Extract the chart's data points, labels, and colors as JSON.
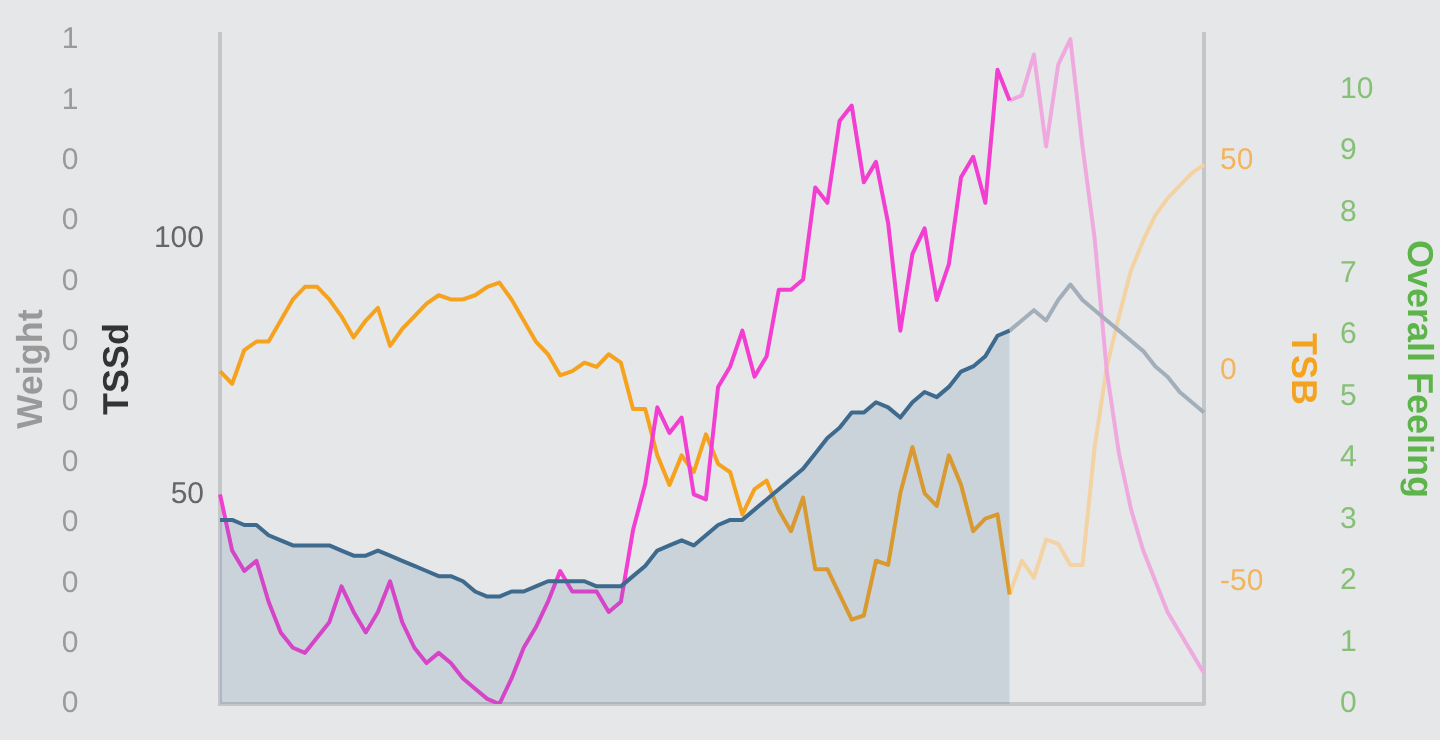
{
  "chart_data": {
    "type": "line",
    "ylabel": "TSSd",
    "y2label": "TSB",
    "y3label": "Overall Feeling",
    "annotations": [
      "Weight",
      "1",
      "1",
      "0",
      "0",
      "0",
      "0",
      "0",
      "0",
      "0",
      "0",
      "0",
      "0"
    ],
    "tick_labels": "y",
    "categories": [
      null,
      null,
      null,
      null,
      null,
      null,
      null,
      null,
      null,
      null,
      null,
      null,
      null,
      null,
      null,
      null,
      null,
      null,
      null,
      null,
      null,
      null,
      null,
      null,
      null,
      null,
      null,
      null,
      null,
      null,
      null,
      null,
      null,
      null,
      null,
      null,
      null,
      null,
      null,
      null,
      null,
      null,
      null,
      null,
      null,
      null,
      null,
      null,
      null,
      null,
      null,
      null,
      null,
      null,
      null,
      null,
      null,
      null,
      null,
      null,
      null,
      null,
      null,
      null,
      null,
      null,
      null,
      null,
      null,
      null,
      null,
      null,
      null,
      null,
      null,
      null,
      null,
      null,
      null,
      null,
      null,
      null
    ],
    "ylim": [
      9,
      140
    ],
    "yticks": [
      50,
      100
    ],
    "y2lim": [
      -79,
      80
    ],
    "y2ticks": [
      -50,
      0,
      50
    ],
    "y3lim": [
      0,
      10.9
    ],
    "y3ticks": [
      0,
      1,
      2,
      3,
      4,
      5,
      6,
      7,
      8,
      9,
      10
    ],
    "series": [
      {
        "type": "area",
        "axis": "y",
        "color": "#3e6a8e",
        "values": [
          45,
          45,
          44,
          44,
          42,
          41,
          40,
          40,
          40,
          40,
          39,
          38,
          38,
          39,
          38,
          37,
          36,
          35,
          34,
          34,
          33,
          31,
          30,
          30,
          31,
          31,
          32,
          33,
          33,
          33,
          33,
          32,
          32,
          32,
          34,
          36,
          39,
          40,
          41,
          40,
          42,
          44,
          45,
          45,
          47,
          49,
          51,
          53,
          55,
          58,
          61,
          63,
          66,
          66,
          68,
          67,
          65,
          68,
          70,
          69,
          71,
          74,
          75,
          77,
          81,
          82,
          null,
          null,
          null,
          null,
          null,
          null,
          null,
          null,
          null,
          null,
          null,
          null,
          null,
          null,
          null,
          null
        ]
      },
      {
        "type": "line",
        "axis": "y",
        "color": "#a3aebb",
        "values": [
          null,
          null,
          null,
          null,
          null,
          null,
          null,
          null,
          null,
          null,
          null,
          null,
          null,
          null,
          null,
          null,
          null,
          null,
          null,
          null,
          null,
          null,
          null,
          null,
          null,
          null,
          null,
          null,
          null,
          null,
          null,
          null,
          null,
          null,
          null,
          null,
          null,
          null,
          null,
          null,
          null,
          null,
          null,
          null,
          null,
          null,
          null,
          null,
          null,
          null,
          null,
          null,
          null,
          null,
          null,
          null,
          null,
          null,
          null,
          null,
          null,
          null,
          null,
          null,
          null,
          82,
          84,
          86,
          84,
          88,
          91,
          88,
          86,
          84,
          82,
          80,
          78,
          75,
          73,
          70,
          68,
          66
        ]
      },
      {
        "type": "line",
        "axis": "y",
        "color": "#f23fd2",
        "values": [
          50,
          39,
          35,
          37,
          29,
          23,
          20,
          19,
          22,
          25,
          32,
          27,
          23,
          27,
          33,
          25,
          20,
          17,
          19,
          17,
          14,
          12,
          10,
          9,
          14,
          20,
          24,
          29,
          35,
          31,
          31,
          31,
          27,
          29,
          43,
          52,
          67,
          62,
          65,
          50,
          49,
          71,
          75,
          82,
          73,
          77,
          90,
          90,
          92,
          110,
          107,
          123,
          126,
          111,
          115,
          103,
          82,
          97,
          102,
          88,
          95,
          112,
          116,
          107,
          133,
          127,
          null,
          null,
          null,
          null,
          null,
          null,
          null,
          null,
          null,
          null,
          null,
          null,
          null,
          null,
          null,
          null
        ]
      },
      {
        "type": "line",
        "axis": "y",
        "color": "#eeaadf",
        "values": [
          null,
          null,
          null,
          null,
          null,
          null,
          null,
          null,
          null,
          null,
          null,
          null,
          null,
          null,
          null,
          null,
          null,
          null,
          null,
          null,
          null,
          null,
          null,
          null,
          null,
          null,
          null,
          null,
          null,
          null,
          null,
          null,
          null,
          null,
          null,
          null,
          null,
          null,
          null,
          null,
          null,
          null,
          null,
          null,
          null,
          null,
          null,
          null,
          null,
          null,
          null,
          null,
          null,
          null,
          null,
          null,
          null,
          null,
          null,
          null,
          null,
          null,
          null,
          null,
          null,
          127,
          128,
          136,
          118,
          134,
          139,
          118,
          100,
          74,
          58,
          47,
          39,
          33,
          27,
          23,
          19,
          15
        ]
      },
      {
        "type": "line",
        "axis": "y2",
        "color": "#f5a31e",
        "values": [
          0,
          -3,
          5,
          7,
          7,
          12,
          17,
          20,
          20,
          17,
          13,
          8,
          12,
          15,
          6,
          10,
          13,
          16,
          18,
          17,
          17,
          18,
          20,
          21,
          17,
          12,
          7,
          4,
          -1,
          0,
          2,
          1,
          4,
          2,
          -9,
          -9,
          -20,
          -27,
          -20,
          -24,
          -15,
          -22,
          -24,
          -34,
          -28,
          -26,
          -33,
          -38,
          -30,
          -47,
          -47,
          -53,
          -59,
          -58,
          -45,
          -46,
          -29,
          -18,
          -29,
          -32,
          -20,
          -27,
          -38,
          -35,
          -34,
          -53,
          null,
          null,
          null,
          null,
          null,
          null,
          null,
          null,
          null,
          null,
          null,
          null,
          null,
          null,
          null,
          null
        ]
      },
      {
        "type": "line",
        "axis": "y2",
        "color": "#f3d3a4",
        "values": [
          null,
          null,
          null,
          null,
          null,
          null,
          null,
          null,
          null,
          null,
          null,
          null,
          null,
          null,
          null,
          null,
          null,
          null,
          null,
          null,
          null,
          null,
          null,
          null,
          null,
          null,
          null,
          null,
          null,
          null,
          null,
          null,
          null,
          null,
          null,
          null,
          null,
          null,
          null,
          null,
          null,
          null,
          null,
          null,
          null,
          null,
          null,
          null,
          null,
          null,
          null,
          null,
          null,
          null,
          null,
          null,
          null,
          null,
          null,
          null,
          null,
          null,
          null,
          null,
          null,
          -53,
          -45,
          -49,
          -40,
          -41,
          -46,
          -46,
          -18,
          1,
          13,
          24,
          31,
          37,
          41,
          44,
          47,
          49
        ]
      }
    ]
  }
}
